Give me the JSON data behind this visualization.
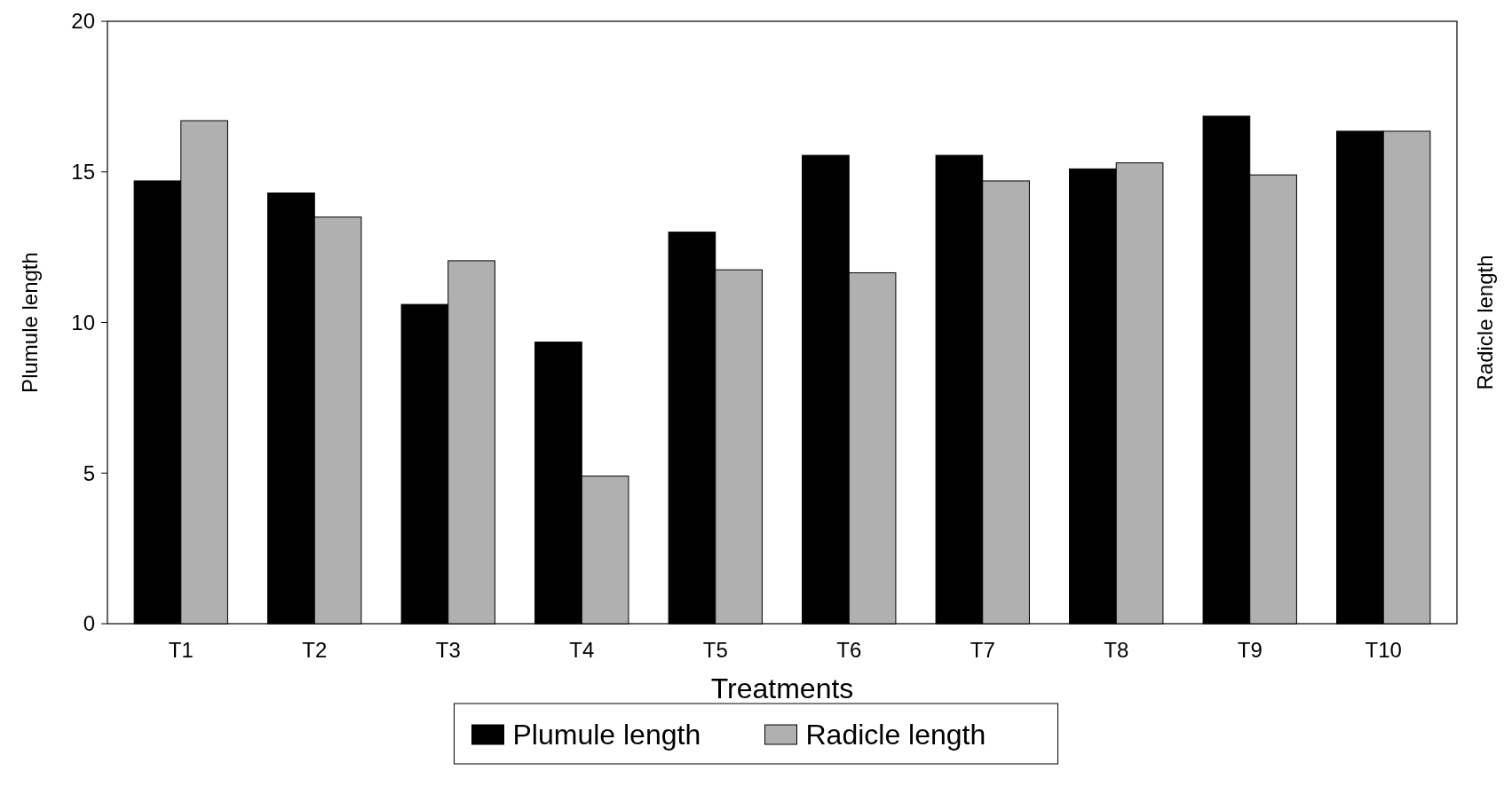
{
  "chart_data": {
    "type": "bar",
    "xlabel": "Treatments",
    "ylabel": "Plumule length",
    "y2label": "Radicle length",
    "categories": [
      "T1",
      "T2",
      "T3",
      "T4",
      "T5",
      "T6",
      "T7",
      "T8",
      "T9",
      "T10"
    ],
    "series": [
      {
        "name": "Plumule length",
        "color": "#000000",
        "values": [
          14.7,
          14.3,
          10.6,
          9.35,
          13.0,
          15.55,
          15.55,
          15.1,
          16.85,
          16.35
        ]
      },
      {
        "name": "Radicle length",
        "color": "#b0b0b0",
        "values": [
          16.7,
          13.5,
          12.05,
          4.9,
          11.75,
          11.65,
          14.7,
          15.3,
          14.9,
          16.35
        ]
      }
    ],
    "ylim": [
      0,
      20
    ],
    "yticks": [
      0,
      5,
      10,
      15,
      20
    ],
    "legend": "bottom"
  }
}
